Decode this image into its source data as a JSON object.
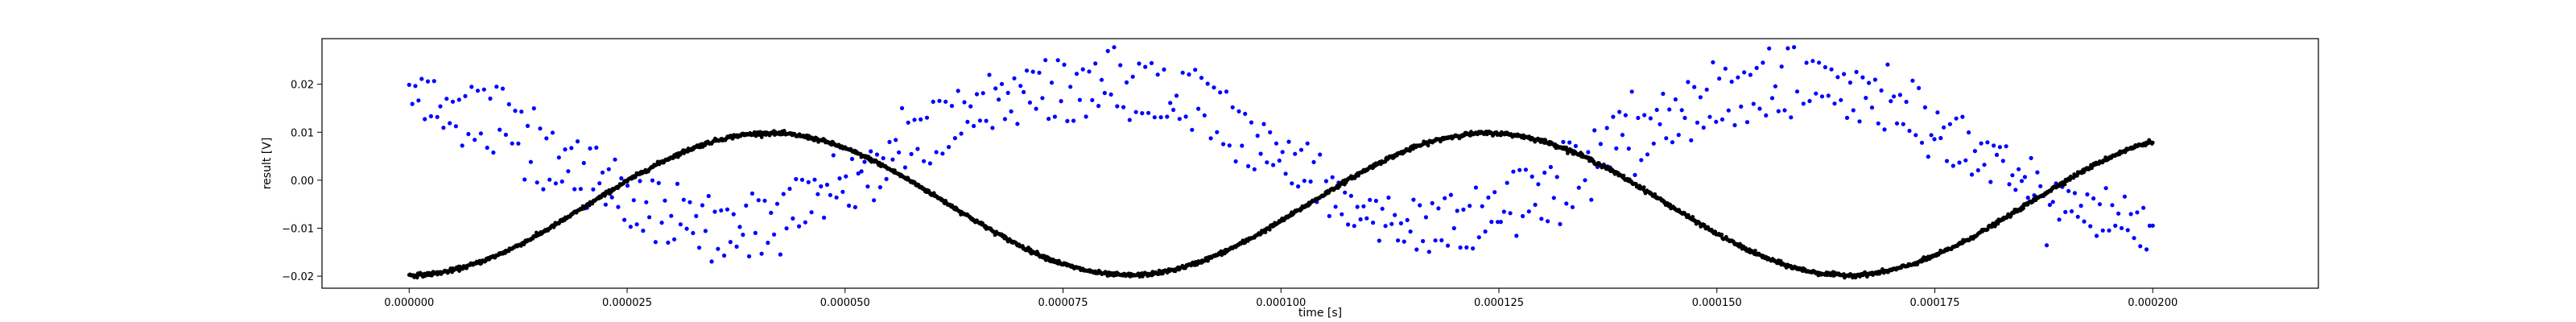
{
  "chart_data": {
    "type": "scatter",
    "title": "",
    "xlabel": "time [s]",
    "ylabel": "result [V]",
    "xlim": [
      -1e-05,
      0.000219
    ],
    "ylim": [
      -0.0225,
      0.0295
    ],
    "xticks": [
      0.0,
      2.5e-05,
      5e-05,
      7.5e-05,
      0.0001,
      0.000125,
      0.00015,
      0.000175,
      0.0002
    ],
    "xtick_labels": [
      "0.000000",
      "0.000025",
      "0.000050",
      "0.000075",
      "0.000100",
      "0.000125",
      "0.000150",
      "0.000175",
      "0.000200"
    ],
    "yticks": [
      -0.02,
      -0.01,
      0.0,
      0.01,
      0.02
    ],
    "ytick_labels": [
      "−0.02",
      "−0.01",
      "0.00",
      "0.01",
      "0.02"
    ],
    "grid": false,
    "legend": "none",
    "series": [
      {
        "color": "#000000",
        "marker": "dense-dots",
        "model": "sinusoid",
        "mean": -0.005,
        "amplitude": 0.0148,
        "period_s": 8.25e-05,
        "minimum_at_s": 0.0,
        "x_range": [
          0.0,
          0.0002
        ],
        "samples": 2400,
        "points": [
          [
            0.0,
            -0.0196
          ],
          [
            2e-05,
            -0.005
          ],
          [
            4e-05,
            0.0097
          ],
          [
            6.1e-05,
            -0.0045
          ],
          [
            8.1e-05,
            -0.0198
          ],
          [
            0.000101,
            -0.0062
          ],
          [
            0.000121,
            0.0097
          ],
          [
            0.000142,
            -0.004
          ],
          [
            0.000162,
            -0.0198
          ],
          [
            0.000182,
            -0.0057
          ],
          [
            0.0002,
            0.009
          ]
        ]
      },
      {
        "color": "#0000ff",
        "marker": "dots",
        "model": "two noisy sinusoidal bands",
        "upper_band": {
          "points": [
            [
              0.0,
              0.0205
            ],
            [
              1e-05,
              0.017
            ],
            [
              2e-05,
              0.006
            ],
            [
              3e-05,
              -0.004
            ],
            [
              4e-05,
              -0.0058
            ],
            [
              5e-05,
              0.002
            ],
            [
              6e-05,
              0.014
            ],
            [
              7e-05,
              0.022
            ],
            [
              8e-05,
              0.024
            ],
            [
              9e-05,
              0.02
            ],
            [
              0.0001,
              0.008
            ],
            [
              0.00011,
              -0.004
            ],
            [
              0.00012,
              -0.006
            ],
            [
              0.00013,
              0.002
            ],
            [
              0.00014,
              0.013
            ],
            [
              0.00015,
              0.021
            ],
            [
              0.00016,
              0.0245
            ],
            [
              0.00017,
              0.02
            ],
            [
              0.00018,
              0.009
            ],
            [
              0.00019,
              -0.003
            ],
            [
              0.0002,
              -0.006
            ]
          ]
        },
        "lower_band": {
          "points": [
            [
              0.0,
              0.014
            ],
            [
              1e-05,
              0.008
            ],
            [
              2e-05,
              -0.003
            ],
            [
              3e-05,
              -0.012
            ],
            [
              4e-05,
              -0.014
            ],
            [
              5e-05,
              -0.004
            ],
            [
              6e-05,
              0.006
            ],
            [
              7e-05,
              0.014
            ],
            [
              8e-05,
              0.016
            ],
            [
              9e-05,
              0.012
            ],
            [
              0.0001,
              0.002
            ],
            [
              0.00011,
              -0.01
            ],
            [
              0.00012,
              -0.013
            ],
            [
              0.00013,
              -0.006
            ],
            [
              0.00014,
              0.005
            ],
            [
              0.00015,
              0.013
            ],
            [
              0.00016,
              0.0165
            ],
            [
              0.00017,
              0.013
            ],
            [
              0.00018,
              0.003
            ],
            [
              0.00019,
              -0.008
            ],
            [
              0.0002,
              -0.012
            ]
          ]
        },
        "noise_v": 0.002
      }
    ]
  }
}
